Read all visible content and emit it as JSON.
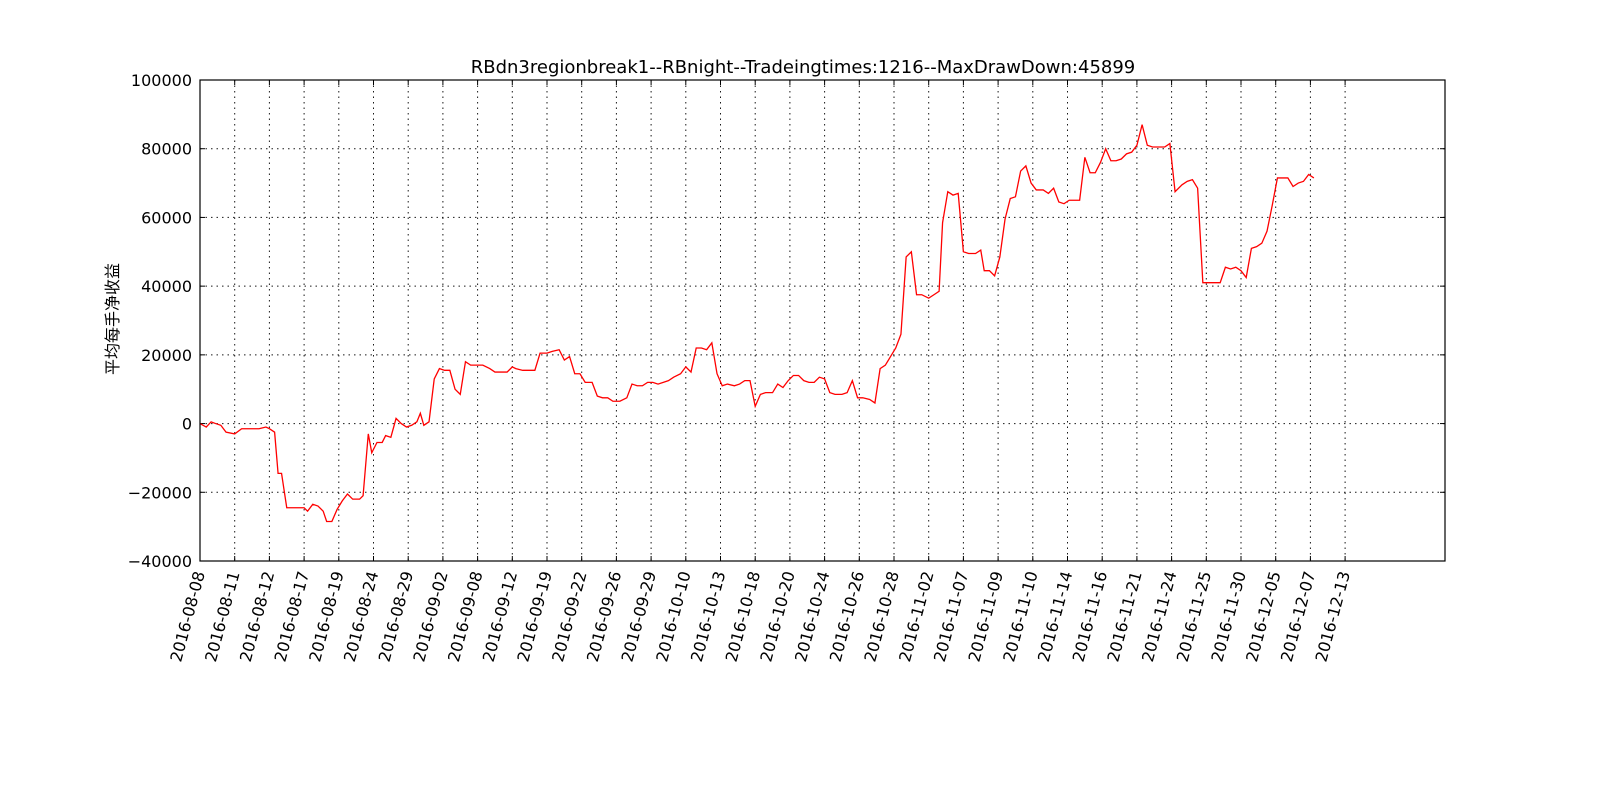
{
  "chart_data": {
    "type": "line",
    "title": "RBdn3regionbreak1--RBnight--Tradeingtimes:1216--MaxDrawDown:45899",
    "xlabel": "",
    "ylabel": "平均每手净收益",
    "ylim": [
      -40000,
      100000
    ],
    "yticks": [
      -40000,
      -20000,
      0,
      20000,
      40000,
      60000,
      80000,
      100000
    ],
    "ytick_labels": [
      "−40000",
      "−20000",
      "0",
      "20000",
      "40000",
      "60000",
      "80000",
      "100000"
    ],
    "xlim": [
      0,
      36
    ],
    "xticks": [
      {
        "pos": 0,
        "label": "2016-08-08"
      },
      {
        "pos": 1,
        "label": "2016-08-11"
      },
      {
        "pos": 2,
        "label": "2016-08-12"
      },
      {
        "pos": 3,
        "label": "2016-08-17"
      },
      {
        "pos": 4,
        "label": "2016-08-19"
      },
      {
        "pos": 5,
        "label": "2016-08-24"
      },
      {
        "pos": 6,
        "label": "2016-08-29"
      },
      {
        "pos": 7,
        "label": "2016-09-02"
      },
      {
        "pos": 8,
        "label": "2016-09-08"
      },
      {
        "pos": 9,
        "label": "2016-09-12"
      },
      {
        "pos": 10,
        "label": "2016-09-19"
      },
      {
        "pos": 11,
        "label": "2016-09-22"
      },
      {
        "pos": 12,
        "label": "2016-09-26"
      },
      {
        "pos": 13,
        "label": "2016-09-29"
      },
      {
        "pos": 14,
        "label": "2016-10-10"
      },
      {
        "pos": 15,
        "label": "2016-10-13"
      },
      {
        "pos": 16,
        "label": "2016-10-18"
      },
      {
        "pos": 17,
        "label": "2016-10-20"
      },
      {
        "pos": 18,
        "label": "2016-10-24"
      },
      {
        "pos": 19,
        "label": "2016-10-26"
      },
      {
        "pos": 20,
        "label": "2016-10-28"
      },
      {
        "pos": 21,
        "label": "2016-11-02"
      },
      {
        "pos": 22,
        "label": "2016-11-07"
      },
      {
        "pos": 23,
        "label": "2016-11-09"
      },
      {
        "pos": 24,
        "label": "2016-11-10"
      },
      {
        "pos": 25,
        "label": "2016-11-14"
      },
      {
        "pos": 26,
        "label": "2016-11-16"
      },
      {
        "pos": 27,
        "label": "2016-11-21"
      },
      {
        "pos": 28,
        "label": "2016-11-24"
      },
      {
        "pos": 29,
        "label": "2016-11-25"
      },
      {
        "pos": 30,
        "label": "2016-11-30"
      },
      {
        "pos": 31,
        "label": "2016-12-05"
      },
      {
        "pos": 32,
        "label": "2016-12-07"
      },
      {
        "pos": 33,
        "label": "2016-12-13"
      }
    ],
    "grid": true,
    "legend": "none",
    "series": [
      {
        "color": "#ff0000",
        "points": [
          [
            0.0,
            0
          ],
          [
            0.18,
            -1000
          ],
          [
            0.32,
            500
          ],
          [
            0.45,
            0
          ],
          [
            0.6,
            -500
          ],
          [
            0.75,
            -2500
          ],
          [
            1.0,
            -3000
          ],
          [
            1.2,
            -1500
          ],
          [
            1.5,
            -1500
          ],
          [
            1.7,
            -1500
          ],
          [
            1.9,
            -1000
          ],
          [
            2.0,
            -1500
          ],
          [
            2.15,
            -2500
          ],
          [
            2.25,
            -14500
          ],
          [
            2.35,
            -14500
          ],
          [
            2.5,
            -24500
          ],
          [
            2.65,
            -24500
          ],
          [
            2.8,
            -24500
          ],
          [
            3.0,
            -24500
          ],
          [
            3.1,
            -25500
          ],
          [
            3.25,
            -23500
          ],
          [
            3.4,
            -24000
          ],
          [
            3.55,
            -25500
          ],
          [
            3.65,
            -28500
          ],
          [
            3.8,
            -28500
          ],
          [
            3.95,
            -25000
          ],
          [
            4.1,
            -22500
          ],
          [
            4.25,
            -20500
          ],
          [
            4.4,
            -22000
          ],
          [
            4.6,
            -22000
          ],
          [
            4.7,
            -21000
          ],
          [
            4.85,
            -3000
          ],
          [
            4.95,
            -8500
          ],
          [
            5.1,
            -5500
          ],
          [
            5.25,
            -5500
          ],
          [
            5.35,
            -3500
          ],
          [
            5.5,
            -4000
          ],
          [
            5.65,
            1500
          ],
          [
            5.8,
            0
          ],
          [
            5.95,
            -1000
          ],
          [
            6.1,
            -500
          ],
          [
            6.25,
            500
          ],
          [
            6.35,
            3000
          ],
          [
            6.45,
            -500
          ],
          [
            6.6,
            500
          ],
          [
            6.75,
            13000
          ],
          [
            6.9,
            16000
          ],
          [
            7.05,
            15500
          ],
          [
            7.2,
            15500
          ],
          [
            7.35,
            10000
          ],
          [
            7.5,
            8500
          ],
          [
            7.65,
            18000
          ],
          [
            7.8,
            17000
          ],
          [
            7.95,
            17000
          ],
          [
            8.15,
            17000
          ],
          [
            8.35,
            16000
          ],
          [
            8.5,
            15000
          ],
          [
            8.65,
            15000
          ],
          [
            8.85,
            15000
          ],
          [
            9.0,
            16500
          ],
          [
            9.1,
            16000
          ],
          [
            9.3,
            15500
          ],
          [
            9.45,
            15500
          ],
          [
            9.65,
            15500
          ],
          [
            9.8,
            20500
          ],
          [
            10.0,
            20500
          ],
          [
            10.15,
            21000
          ],
          [
            10.35,
            21500
          ],
          [
            10.5,
            18500
          ],
          [
            10.65,
            19500
          ],
          [
            10.8,
            14500
          ],
          [
            10.95,
            14500
          ],
          [
            11.1,
            12000
          ],
          [
            11.3,
            12000
          ],
          [
            11.45,
            8000
          ],
          [
            11.6,
            7500
          ],
          [
            11.75,
            7500
          ],
          [
            11.9,
            6500
          ],
          [
            12.1,
            6500
          ],
          [
            12.3,
            7500
          ],
          [
            12.45,
            11500
          ],
          [
            12.6,
            11000
          ],
          [
            12.75,
            11000
          ],
          [
            12.9,
            12000
          ],
          [
            13.05,
            12000
          ],
          [
            13.2,
            11500
          ],
          [
            13.35,
            12000
          ],
          [
            13.5,
            12500
          ],
          [
            13.65,
            13500
          ],
          [
            13.85,
            14500
          ],
          [
            14.0,
            16500
          ],
          [
            14.15,
            15000
          ],
          [
            14.3,
            22000
          ],
          [
            14.45,
            22000
          ],
          [
            14.6,
            21500
          ],
          [
            14.75,
            23500
          ],
          [
            14.9,
            14500
          ],
          [
            15.05,
            11000
          ],
          [
            15.2,
            11500
          ],
          [
            15.4,
            11000
          ],
          [
            15.55,
            11500
          ],
          [
            15.7,
            12500
          ],
          [
            15.85,
            12500
          ],
          [
            16.0,
            5000
          ],
          [
            16.15,
            8500
          ],
          [
            16.3,
            9000
          ],
          [
            16.5,
            9000
          ],
          [
            16.65,
            11500
          ],
          [
            16.8,
            10500
          ],
          [
            16.95,
            12500
          ],
          [
            17.1,
            14000
          ],
          [
            17.25,
            14000
          ],
          [
            17.4,
            12500
          ],
          [
            17.55,
            12000
          ],
          [
            17.7,
            12000
          ],
          [
            17.85,
            13500
          ],
          [
            18.0,
            13000
          ],
          [
            18.15,
            9000
          ],
          [
            18.3,
            8500
          ],
          [
            18.5,
            8500
          ],
          [
            18.65,
            9000
          ],
          [
            18.8,
            12500
          ],
          [
            18.95,
            7500
          ],
          [
            19.1,
            7500
          ],
          [
            19.3,
            7000
          ],
          [
            19.45,
            6000
          ],
          [
            19.6,
            16000
          ],
          [
            19.75,
            17000
          ],
          [
            19.9,
            19500
          ],
          [
            20.05,
            22000
          ],
          [
            20.2,
            26000
          ],
          [
            20.35,
            48500
          ],
          [
            20.5,
            50000
          ],
          [
            20.65,
            37500
          ],
          [
            20.8,
            37500
          ],
          [
            21.0,
            36500
          ],
          [
            21.15,
            37500
          ],
          [
            21.3,
            38500
          ],
          [
            21.4,
            58500
          ],
          [
            21.55,
            67500
          ],
          [
            21.7,
            66500
          ],
          [
            21.85,
            67000
          ],
          [
            22.0,
            50000
          ],
          [
            22.15,
            49500
          ],
          [
            22.35,
            49500
          ],
          [
            22.5,
            50500
          ],
          [
            22.6,
            44500
          ],
          [
            22.75,
            44500
          ],
          [
            22.9,
            43000
          ],
          [
            23.05,
            48500
          ],
          [
            23.2,
            59500
          ],
          [
            23.35,
            65500
          ],
          [
            23.5,
            66000
          ],
          [
            23.65,
            73500
          ],
          [
            23.8,
            75000
          ],
          [
            23.95,
            70000
          ],
          [
            24.1,
            68000
          ],
          [
            24.3,
            68000
          ],
          [
            24.45,
            67000
          ],
          [
            24.6,
            68500
          ],
          [
            24.75,
            64500
          ],
          [
            24.9,
            64000
          ],
          [
            25.05,
            65000
          ],
          [
            25.2,
            65000
          ],
          [
            25.35,
            65000
          ],
          [
            25.5,
            77500
          ],
          [
            25.65,
            73000
          ],
          [
            25.8,
            73000
          ],
          [
            25.95,
            76000
          ],
          [
            26.1,
            80000
          ],
          [
            26.25,
            76500
          ],
          [
            26.4,
            76500
          ],
          [
            26.55,
            77000
          ],
          [
            26.7,
            78500
          ],
          [
            26.85,
            79000
          ],
          [
            27.0,
            81000
          ],
          [
            27.15,
            87000
          ],
          [
            27.3,
            81000
          ],
          [
            27.45,
            80500
          ],
          [
            27.65,
            80500
          ],
          [
            27.8,
            80500
          ],
          [
            27.95,
            81500
          ],
          [
            28.1,
            67500
          ],
          [
            28.3,
            69500
          ],
          [
            28.45,
            70500
          ],
          [
            28.6,
            71000
          ],
          [
            28.75,
            68500
          ],
          [
            28.9,
            41000
          ],
          [
            29.05,
            41000
          ],
          [
            29.2,
            41000
          ],
          [
            29.4,
            41000
          ],
          [
            29.55,
            45500
          ],
          [
            29.7,
            45000
          ],
          [
            29.85,
            45500
          ],
          [
            30.0,
            44500
          ],
          [
            30.15,
            42500
          ],
          [
            30.3,
            51000
          ],
          [
            30.45,
            51500
          ],
          [
            30.6,
            52500
          ],
          [
            30.75,
            56000
          ],
          [
            30.9,
            63500
          ],
          [
            31.05,
            71500
          ],
          [
            31.2,
            71500
          ],
          [
            31.35,
            71500
          ],
          [
            31.5,
            69000
          ],
          [
            31.65,
            70000
          ],
          [
            31.8,
            70500
          ],
          [
            31.95,
            72500
          ],
          [
            32.1,
            71500
          ]
        ]
      }
    ]
  }
}
